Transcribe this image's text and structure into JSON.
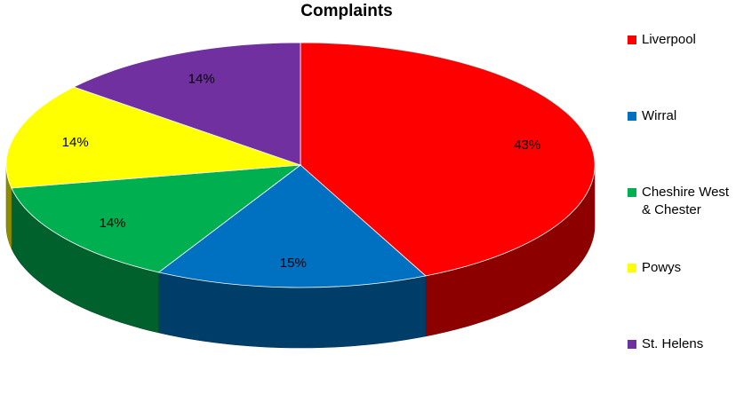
{
  "chart_data": {
    "type": "pie",
    "title": "Complaints",
    "categories": [
      "Liverpool",
      "Wirral",
      "Cheshire West & Chester",
      "Powys",
      "St. Helens"
    ],
    "values": [
      43,
      15,
      14,
      14,
      14
    ],
    "data_labels": [
      "43%",
      "15%",
      "14%",
      "14%",
      "14%"
    ],
    "colors": [
      "#ff0000",
      "#0070c0",
      "#00b050",
      "#ffff00",
      "#7030a0"
    ],
    "legend_position": "right",
    "style": "3d"
  }
}
